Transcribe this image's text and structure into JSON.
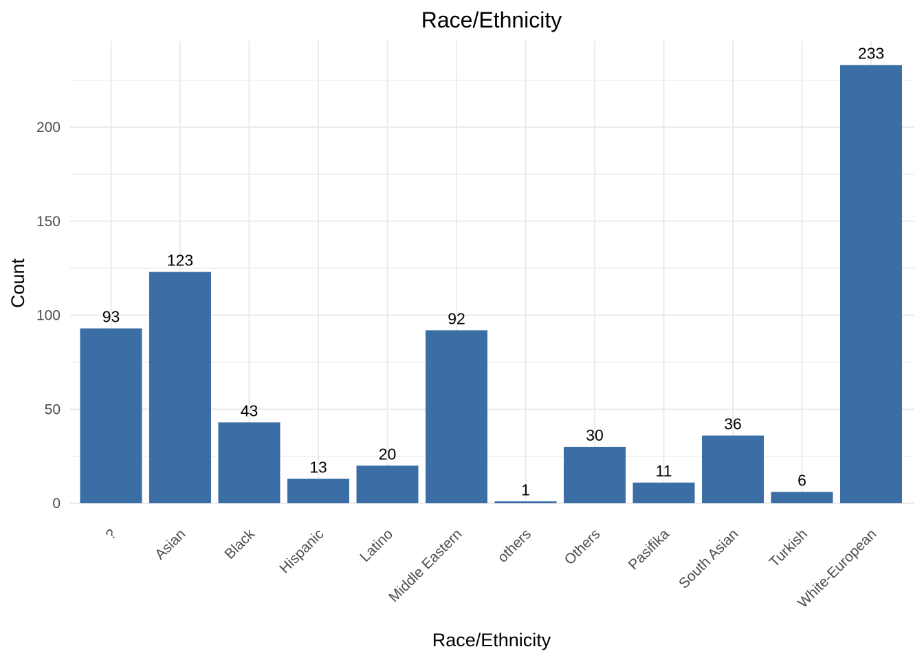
{
  "chart_data": {
    "type": "bar",
    "title": "Race/Ethnicity",
    "xlabel": "Race/Ethnicity",
    "ylabel": "Count",
    "categories": [
      "?",
      "Asian",
      "Black",
      "Hispanic",
      "Latino",
      "Middle Eastern",
      "others",
      "Others",
      "Pasifika",
      "South Asian",
      "Turkish",
      "White-European"
    ],
    "values": [
      93,
      123,
      43,
      13,
      20,
      92,
      1,
      30,
      11,
      36,
      6,
      233
    ],
    "ylim": [
      0,
      245
    ],
    "yticks": [
      0,
      50,
      100,
      150,
      200
    ],
    "grid": true,
    "legend": "none",
    "bar_color": "#3a6ea5"
  }
}
